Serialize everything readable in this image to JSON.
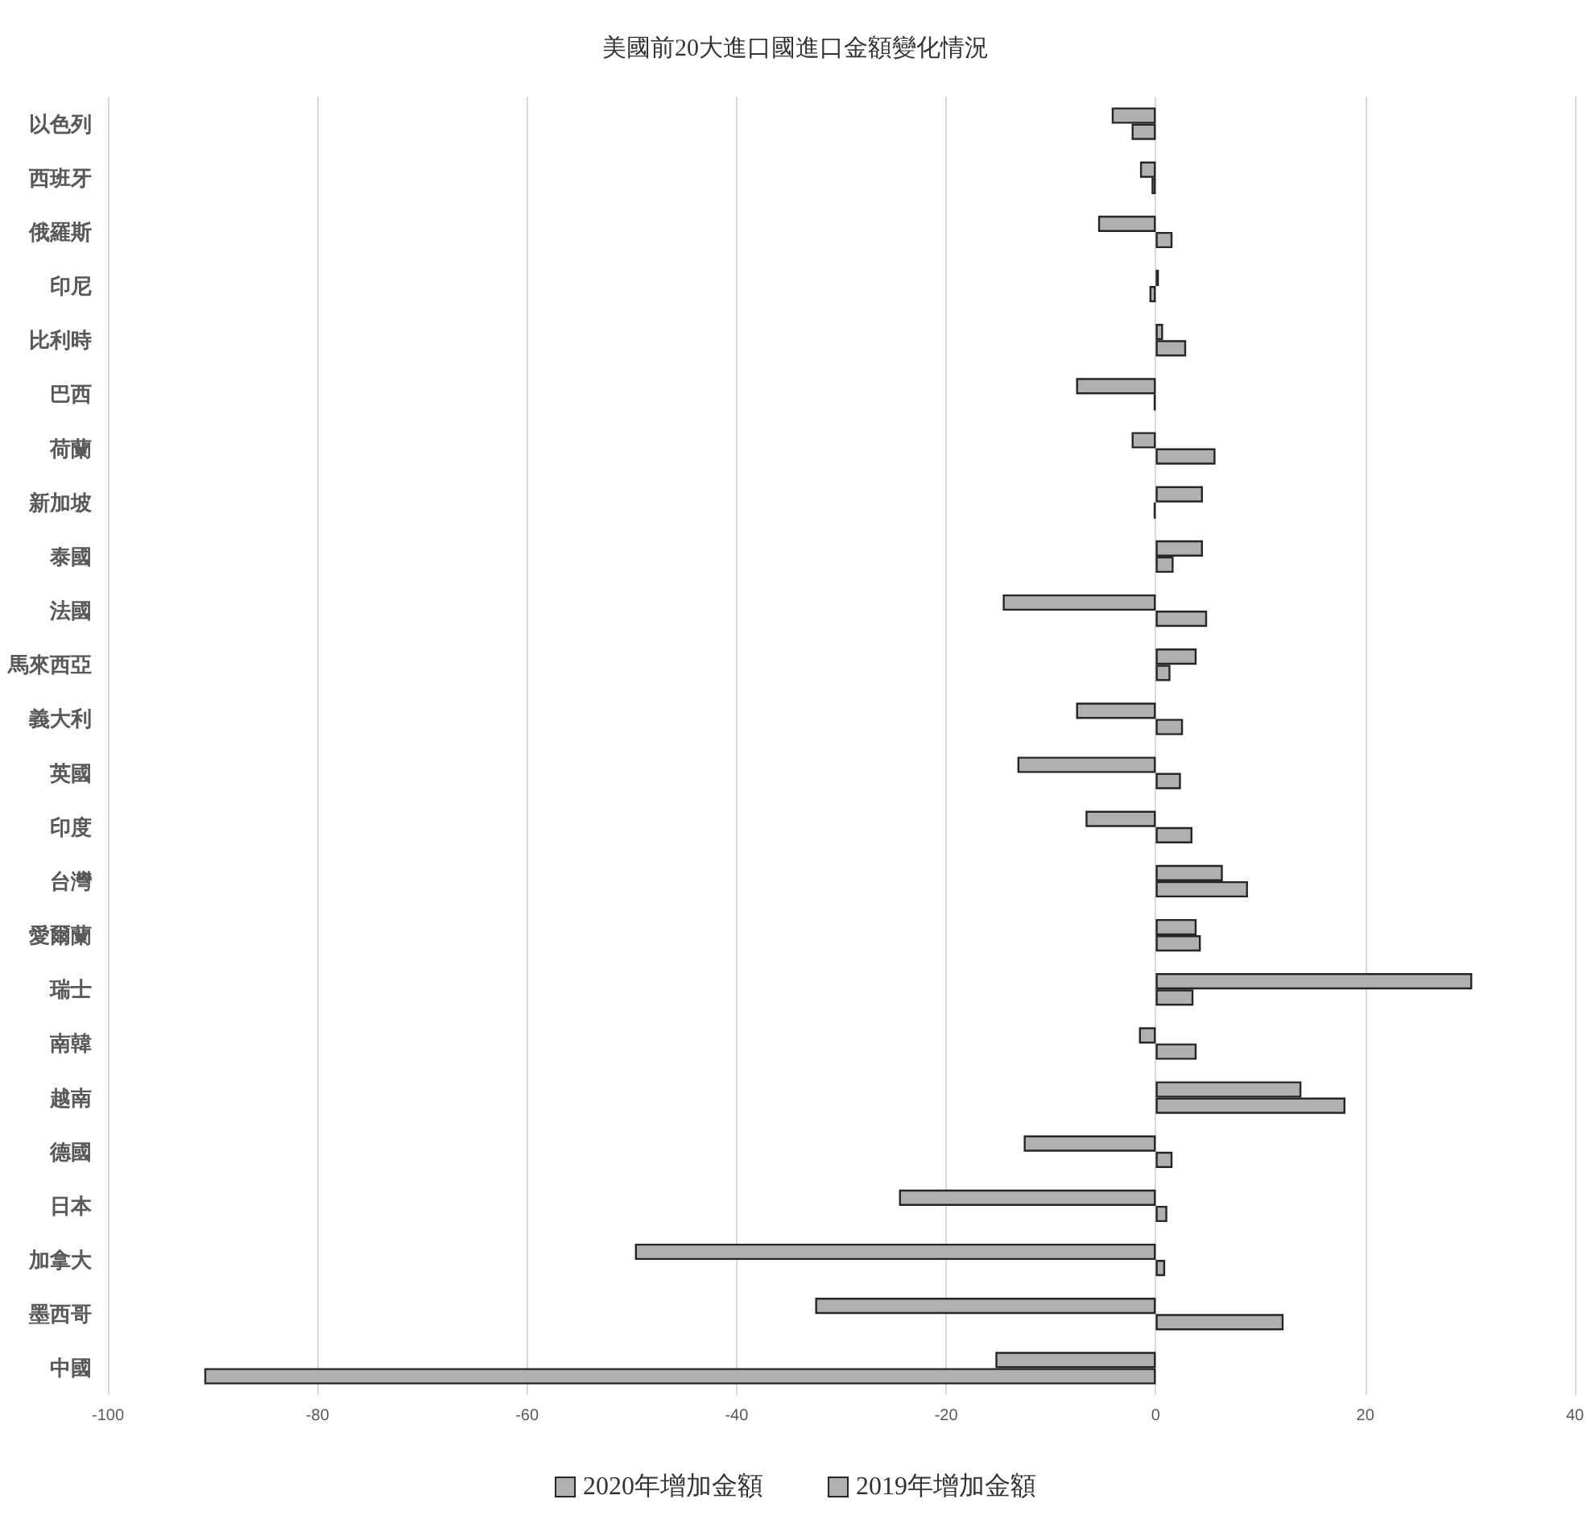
{
  "chart_data": {
    "type": "bar",
    "orientation": "horizontal",
    "title": "美國前20大進口國進口金額變化情況",
    "categories": [
      "以色列",
      "西班牙",
      "俄羅斯",
      "印尼",
      "比利時",
      "巴西",
      "荷蘭",
      "新加坡",
      "泰國",
      "法國",
      "馬來西亞",
      "義大利",
      "英國",
      "印度",
      "台灣",
      "愛爾蘭",
      "瑞士",
      "南韓",
      "越南",
      "德國",
      "日本",
      "加拿大",
      "墨西哥",
      "中國"
    ],
    "series": [
      {
        "name": "2020年增加金額",
        "color": "#b0b0b0",
        "values": [
          -4.2,
          -1.5,
          -5.5,
          0.3,
          0.7,
          -7.6,
          -2.3,
          4.5,
          4.5,
          -14.6,
          3.9,
          -7.6,
          -13.2,
          -6.7,
          6.4,
          3.9,
          30.2,
          -1.6,
          13.9,
          -12.6,
          -24.5,
          -49.7,
          -32.5,
          -15.3
        ]
      },
      {
        "name": "2019年增加金額",
        "color": "#b0b0b0",
        "values": [
          -2.3,
          -0.4,
          1.6,
          -0.6,
          2.9,
          -0.2,
          5.7,
          -0.2,
          1.7,
          4.9,
          1.4,
          2.6,
          2.4,
          3.5,
          8.8,
          4.3,
          3.6,
          3.9,
          18.1,
          1.6,
          1.1,
          0.9,
          12.2,
          -90.8
        ]
      }
    ],
    "xlim": [
      -100,
      40
    ],
    "xticks": [
      -100,
      -80,
      -60,
      -40,
      -20,
      0,
      20,
      40
    ],
    "grid": "x",
    "legend": "bottom"
  }
}
